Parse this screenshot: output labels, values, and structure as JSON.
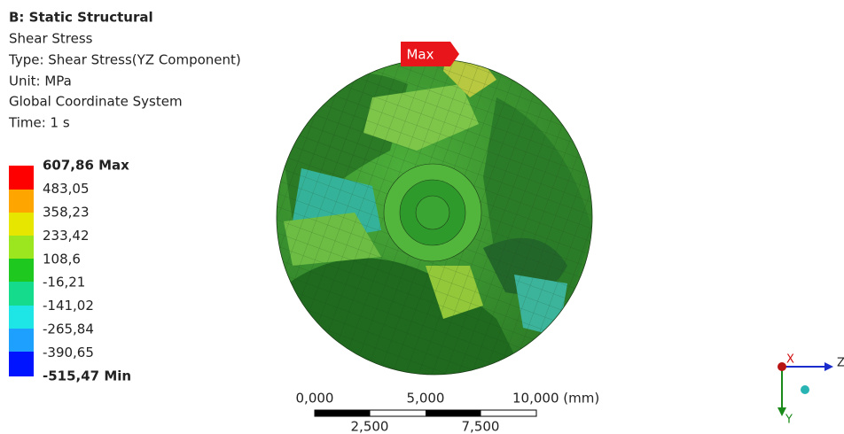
{
  "header": {
    "title": "B: Static Structural",
    "lines": [
      "Shear Stress",
      "Type: Shear Stress(YZ Component)",
      "Unit: MPa",
      "Global Coordinate System",
      "Time: 1 s"
    ]
  },
  "legend": {
    "labels": [
      "607,86 Max",
      "483,05",
      "358,23",
      "233,42",
      "108,6",
      "-16,21",
      "-141,02",
      "-265,84",
      "-390,65",
      "-515,47 Min"
    ]
  },
  "probe": {
    "label": "Max"
  },
  "scale_bar": {
    "top_labels": [
      "0,000",
      "5,000",
      "10,000 (mm)"
    ],
    "bottom_labels": [
      "2,500",
      "7,500"
    ]
  },
  "triad": {
    "labels": [
      "X",
      "Z",
      "Y"
    ]
  }
}
